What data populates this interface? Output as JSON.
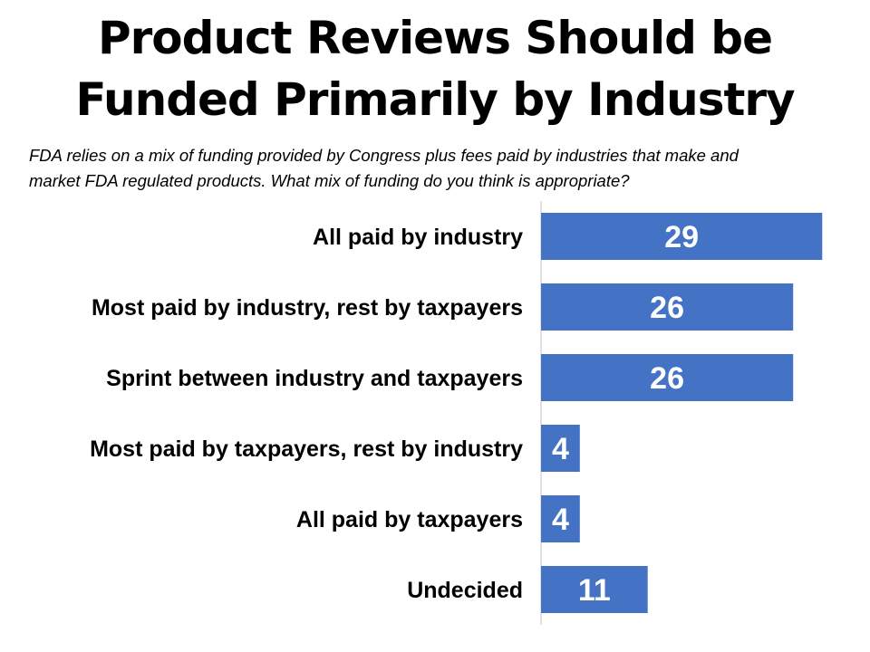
{
  "header": {
    "title_line1": "Product Reviews Should be",
    "title_line2": "Funded Primarily by Industry",
    "subtitle_line1": "FDA relies on a mix of funding provided by Congress plus fees paid by industries that make and",
    "subtitle_line2": "market FDA regulated products. What mix of funding do you think is appropriate?"
  },
  "chart_data": {
    "type": "bar",
    "orientation": "horizontal",
    "title": "Product Reviews Should be Funded Primarily by Industry",
    "categories": [
      "All paid by industry",
      "Most paid by industry, rest by taxpayers",
      "Sprint between industry and taxpayers",
      "Most paid by taxpayers, rest by industry",
      "All paid by taxpayers",
      "Undecided"
    ],
    "values": [
      29,
      26,
      26,
      4,
      4,
      11
    ],
    "data_labels": [
      "29",
      "26",
      "26",
      "4",
      "4",
      "11"
    ],
    "xlabel": "",
    "ylabel": "",
    "xlim": [
      0,
      30
    ],
    "grid": false,
    "legend": "none",
    "colors": {
      "bar": "#4472C4",
      "data_label": "#FFFFFF",
      "axis": "#D9D9D9"
    }
  }
}
